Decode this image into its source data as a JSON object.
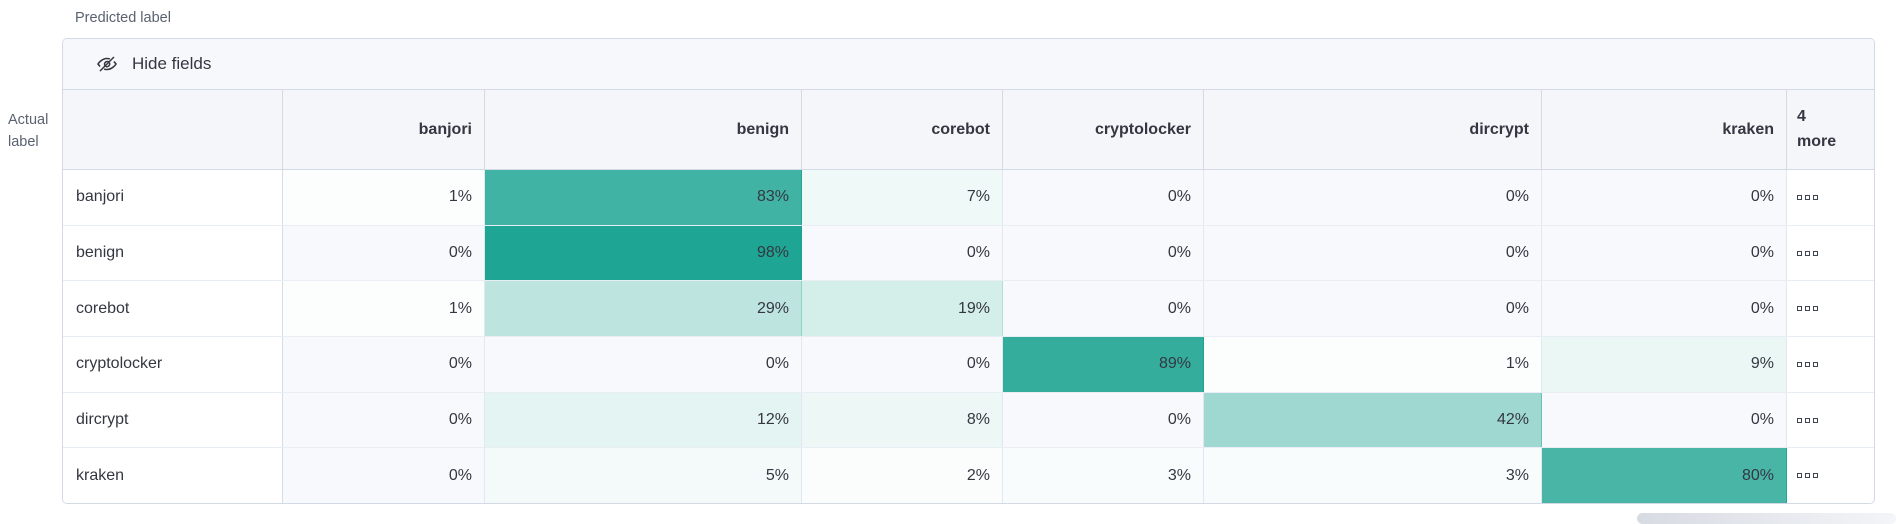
{
  "axis": {
    "predicted_label": "Predicted label",
    "actual_label": "Actual\nlabel"
  },
  "toolbar": {
    "hide_fields_label": "Hide fields",
    "icon": "eye-closed-icon"
  },
  "matrix": {
    "columns": [
      "banjori",
      "benign",
      "corebot",
      "cryptolocker",
      "dircrypt",
      "kraken"
    ],
    "more_column_label": "4\nmore",
    "more_column_count": 4,
    "value_suffix": "%",
    "overflow_icon": "boxes-horizontal-icon",
    "rows": [
      {
        "label": "banjori",
        "values": [
          1,
          83,
          7,
          0,
          0,
          0
        ]
      },
      {
        "label": "benign",
        "values": [
          0,
          98,
          0,
          0,
          0,
          0
        ]
      },
      {
        "label": "corebot",
        "values": [
          1,
          29,
          19,
          0,
          0,
          0
        ]
      },
      {
        "label": "cryptolocker",
        "values": [
          0,
          0,
          0,
          89,
          1,
          9
        ]
      },
      {
        "label": "dircrypt",
        "values": [
          0,
          12,
          8,
          0,
          42,
          0
        ]
      },
      {
        "label": "kraken",
        "values": [
          0,
          5,
          2,
          3,
          3,
          80
        ]
      }
    ]
  },
  "colors": {
    "heat_base_rgb": "27,163,145",
    "heat_accent": "#1ba391",
    "cell_zero_bg": "#f7f9fc",
    "light_border": "#e2e8f1",
    "panel_border": "#d3dae6"
  }
}
